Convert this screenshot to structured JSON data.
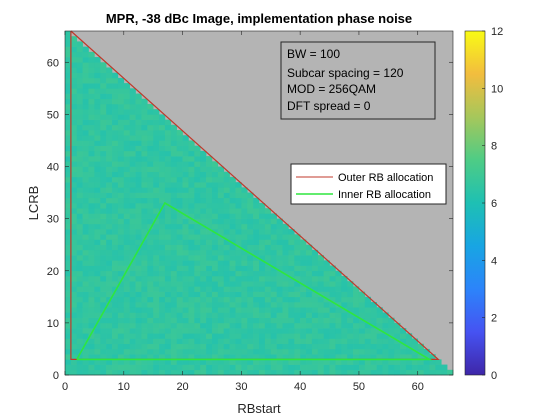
{
  "chart_data": {
    "type": "heatmap",
    "title": "MPR, -38 dBc Image, implementation phase noise",
    "xlabel": "RBstart",
    "ylabel": "LCRB",
    "xlim": [
      0,
      66
    ],
    "ylim": [
      0,
      66
    ],
    "xticks": [
      "0",
      "10",
      "20",
      "30",
      "40",
      "50",
      "60"
    ],
    "yticks": [
      "0",
      "10",
      "20",
      "30",
      "40",
      "50",
      "60"
    ],
    "grid": false,
    "background_color": "#b4b4b4",
    "triangle_fill_value": 6.6,
    "colorbar": {
      "range": [
        0,
        12
      ],
      "ticks": [
        "0",
        "2",
        "4",
        "6",
        "8",
        "10",
        "12"
      ],
      "colormap": "parula"
    },
    "info_box": {
      "lines": [
        "BW = 100",
        "Subcar spacing  = 120",
        "MOD = 256QAM",
        "DFT spread = 0"
      ],
      "placement": "top-right"
    },
    "legend": {
      "placement": "right",
      "entries": [
        {
          "label": "Outer RB allocation",
          "color": "#c0392b"
        },
        {
          "label": "Inner RB allocation",
          "color": "#2ee63e"
        }
      ]
    },
    "series": [
      {
        "name": "Outer RB allocation",
        "color": "#c0392b",
        "x": [
          1,
          1,
          63.5,
          1
        ],
        "y": [
          66,
          3,
          3,
          66
        ]
      },
      {
        "name": "Inner RB allocation",
        "color": "#2ee63e",
        "x": [
          2,
          17,
          62,
          2
        ],
        "y": [
          3,
          33,
          3,
          3
        ]
      }
    ]
  }
}
